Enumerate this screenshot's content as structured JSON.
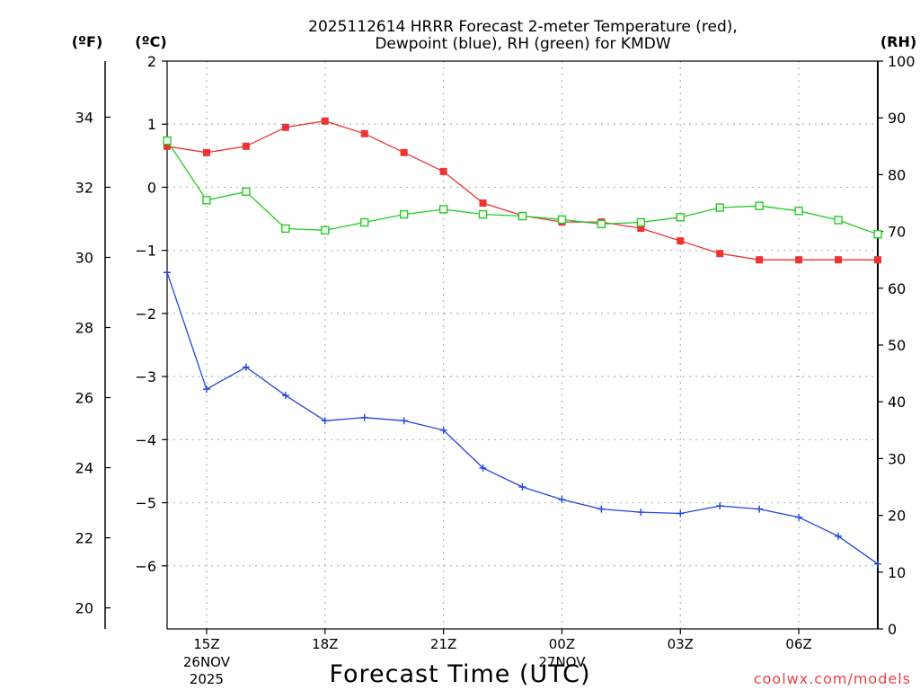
{
  "chart_data": {
    "type": "line",
    "title": "2025112614 HRRR Forecast 2-meter Temperature (red),",
    "subtitle": "Dewpoint (blue), RH (green) for KMDW",
    "xlabel": "Forecast Time (UTC)",
    "credit": "coolwx.com/models",
    "units": {
      "fahrenheit": "(ºF)",
      "celsius": "(ºC)",
      "rh": "(RH)"
    },
    "x_hours": [
      14,
      15,
      16,
      17,
      18,
      19,
      20,
      21,
      22,
      23,
      24,
      25,
      26,
      27,
      28,
      29,
      30,
      31,
      32
    ],
    "x_range": [
      14,
      32
    ],
    "x_ticks": [
      {
        "hour": 15,
        "label": "15Z",
        "date": "26NOV",
        "year": "2025"
      },
      {
        "hour": 18,
        "label": "18Z"
      },
      {
        "hour": 21,
        "label": "21Z"
      },
      {
        "hour": 24,
        "label": "00Z",
        "date": "27NOV"
      },
      {
        "hour": 27,
        "label": "03Z"
      },
      {
        "hour": 30,
        "label": "06Z"
      }
    ],
    "celsius_axis": {
      "range": [
        -7,
        2
      ],
      "ticks": [
        "2",
        "1",
        "0",
        "−1",
        "−2",
        "−3",
        "−4",
        "−5",
        "−6"
      ]
    },
    "fahrenheit_axis": {
      "range": [
        19.4,
        35.6
      ],
      "ticks": [
        "34",
        "32",
        "30",
        "28",
        "26",
        "24",
        "22",
        "20"
      ]
    },
    "rh_axis": {
      "range": [
        0,
        100
      ],
      "ticks": [
        "100",
        "90",
        "80",
        "70",
        "60",
        "50",
        "40",
        "30",
        "20",
        "10",
        "0"
      ]
    },
    "series": [
      {
        "name": "Temperature",
        "axis": "celsius",
        "color": "#ee3333",
        "marker": "filled-square",
        "values": [
          0.65,
          0.55,
          0.65,
          0.95,
          1.05,
          0.85,
          0.55,
          0.25,
          -0.25,
          -0.45,
          -0.55,
          -0.55,
          -0.65,
          -0.85,
          -1.05,
          -1.15,
          -1.15,
          -1.15,
          -1.15
        ]
      },
      {
        "name": "Dewpoint",
        "axis": "celsius",
        "color": "#2244dd",
        "marker": "plus",
        "values": [
          -1.35,
          -3.2,
          -2.85,
          -3.3,
          -3.7,
          -3.65,
          -3.7,
          -3.85,
          -4.45,
          -4.75,
          -4.95,
          -5.1,
          -5.15,
          -5.17,
          -5.05,
          -5.1,
          -5.23,
          -5.53,
          -5.97
        ]
      },
      {
        "name": "RH",
        "axis": "rh",
        "color": "#22cc22",
        "marker": "open-square",
        "values": [
          86,
          75.5,
          77,
          70.5,
          70.2,
          71.6,
          73,
          73.9,
          73,
          72.7,
          72.1,
          71.3,
          71.6,
          72.5,
          74.2,
          74.5,
          73.6,
          72,
          69.5
        ]
      }
    ]
  }
}
